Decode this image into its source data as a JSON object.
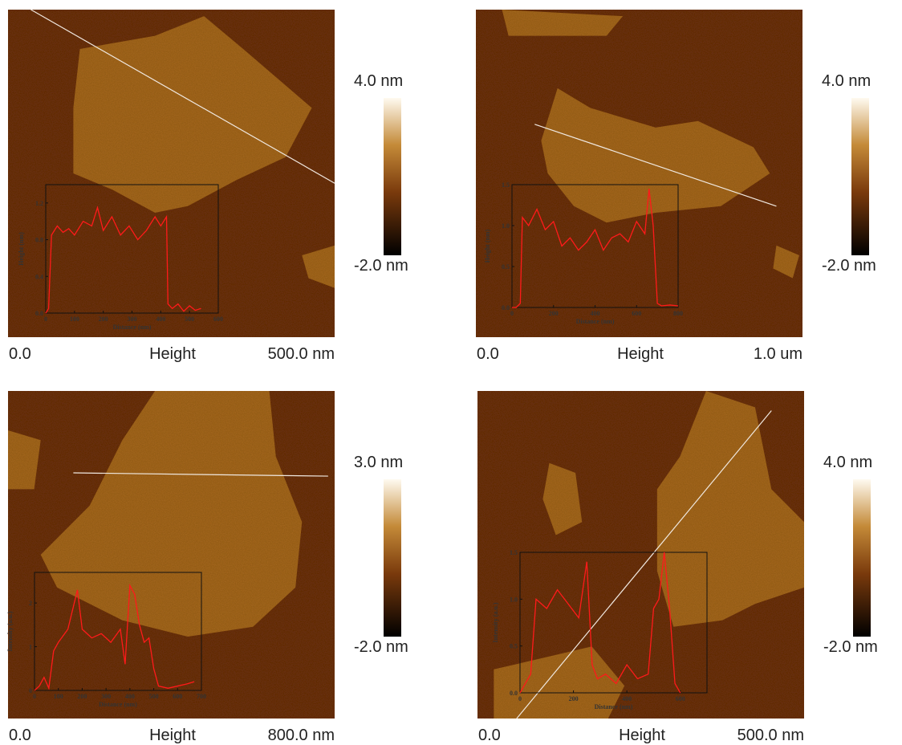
{
  "panels": [
    {
      "scale_max": "4.0 nm",
      "scale_min": "-2.0 nm",
      "x_start": "0.0",
      "channel": "Height",
      "x_end": "500.0 nm",
      "inset": {
        "ylabel": "Height (nm)",
        "xlabel": "Distance (nm)",
        "xlim": [
          0,
          600
        ],
        "xticks": [
          0,
          100,
          200,
          300,
          400,
          500,
          600
        ],
        "ylim": [
          0,
          1.4
        ],
        "yticks": [
          {
            "value": 0,
            "label": "0.0"
          },
          0.4,
          0.8,
          1.2
        ],
        "x": [
          0,
          10,
          20,
          40,
          60,
          80,
          100,
          130,
          160,
          180,
          200,
          230,
          260,
          290,
          320,
          350,
          380,
          400,
          420,
          425,
          440,
          460,
          480,
          500,
          520,
          540
        ],
        "values": [
          0,
          0.05,
          0.85,
          0.95,
          0.88,
          0.92,
          0.85,
          1.0,
          0.95,
          1.15,
          0.9,
          1.05,
          0.85,
          0.95,
          0.8,
          0.9,
          1.05,
          0.95,
          1.05,
          0.1,
          0.05,
          0.1,
          0.02,
          0.08,
          0.03,
          0.05
        ]
      }
    },
    {
      "scale_max": "4.0 nm",
      "scale_min": "-2.0 nm",
      "x_start": "0.0",
      "channel": "Height",
      "x_end": "1.0 um",
      "inset": {
        "ylabel": "Height (nm)",
        "xlabel": "Distance (nm)",
        "xlim": [
          0,
          800
        ],
        "xticks": [
          0,
          200,
          400,
          600,
          800
        ],
        "ylim": [
          0,
          1.5
        ],
        "yticks": [
          {
            "value": 0,
            "label": "0.0"
          },
          0.5,
          {
            "value": 1,
            "label": "1.0"
          },
          1.5
        ],
        "x": [
          0,
          20,
          40,
          50,
          80,
          120,
          160,
          200,
          240,
          280,
          320,
          360,
          400,
          440,
          480,
          520,
          560,
          600,
          640,
          660,
          680,
          700,
          720,
          760,
          800
        ],
        "values": [
          0,
          0,
          0.05,
          1.1,
          1.0,
          1.2,
          0.95,
          1.05,
          0.75,
          0.85,
          0.7,
          0.8,
          0.95,
          0.7,
          0.85,
          0.9,
          0.8,
          1.05,
          0.9,
          1.45,
          1.0,
          0.05,
          0.02,
          0.03,
          0.02
        ]
      }
    },
    {
      "scale_max": "3.0 nm",
      "scale_min": "-2.0 nm",
      "x_start": "0.0",
      "channel": "Height",
      "x_end": "800.0 nm",
      "inset": {
        "ylabel": "Intensity (a.u.)",
        "xlabel": "Distance (nm)",
        "xlim": [
          0,
          700
        ],
        "xticks": [
          0,
          100,
          200,
          300,
          400,
          500,
          600,
          700
        ],
        "ylim": [
          0,
          2.7
        ],
        "yticks": [
          0,
          1,
          2
        ],
        "x": [
          0,
          20,
          40,
          60,
          80,
          100,
          140,
          180,
          200,
          240,
          280,
          320,
          360,
          380,
          400,
          420,
          440,
          460,
          480,
          500,
          520,
          560,
          600,
          640,
          670
        ],
        "values": [
          0,
          0.1,
          0.3,
          0.05,
          0.9,
          1.1,
          1.4,
          2.3,
          1.4,
          1.2,
          1.3,
          1.1,
          1.4,
          0.6,
          2.4,
          2.2,
          1.5,
          1.1,
          1.2,
          0.5,
          0.1,
          0.05,
          0.1,
          0.15,
          0.2
        ]
      }
    },
    {
      "scale_max": "4.0 nm",
      "scale_min": "-2.0 nm",
      "x_start": "0.0",
      "channel": "Height",
      "x_end": "500.0 nm",
      "inset": {
        "ylabel": "Intensity (a.u.)",
        "xlabel": "Distance (nm)",
        "xlim": [
          0,
          700
        ],
        "xticks": [
          0,
          200,
          400,
          600
        ],
        "ylim": [
          0,
          1.5
        ],
        "yticks": [
          {
            "value": 0,
            "label": "0.0"
          },
          0.5,
          {
            "value": 1,
            "label": "1.0"
          },
          1.5
        ],
        "x": [
          0,
          20,
          40,
          60,
          100,
          140,
          180,
          220,
          250,
          270,
          290,
          320,
          360,
          400,
          440,
          480,
          500,
          520,
          540,
          560,
          580,
          600
        ],
        "values": [
          0,
          0.1,
          0.2,
          1.0,
          0.9,
          1.1,
          0.95,
          0.8,
          1.4,
          0.3,
          0.15,
          0.2,
          0.1,
          0.3,
          0.15,
          0.2,
          0.9,
          1.0,
          1.5,
          0.9,
          0.1,
          0
        ]
      }
    }
  ]
}
